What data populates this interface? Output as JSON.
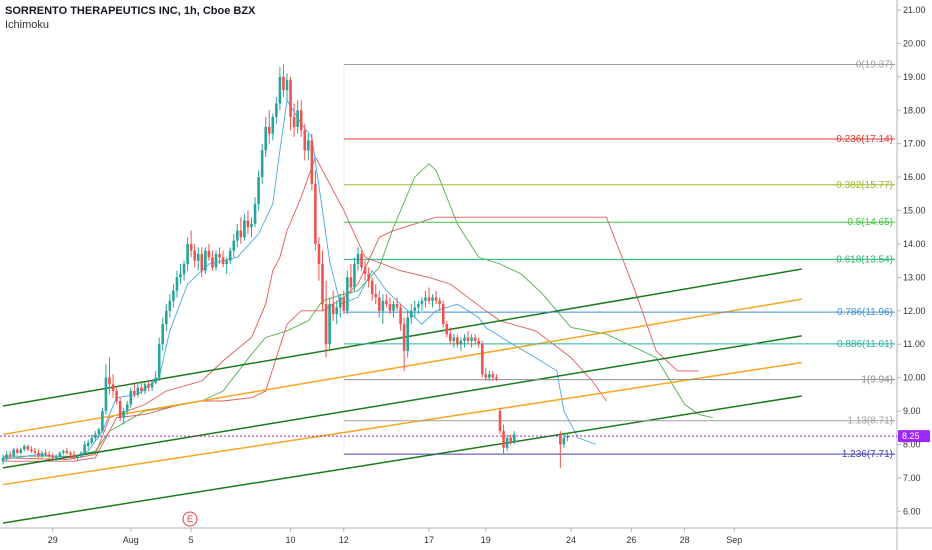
{
  "header": {
    "title": "SORRENTO THERAPEUTICS INC, 1h, Cboe BZX",
    "indicator": "Ichimoku"
  },
  "earnings_marker": "E",
  "colors": {
    "up": "#26a69a",
    "down": "#ef5350",
    "tenkan": "#4aa8e6",
    "kijun": "#e05a5a",
    "span_a": "#4caf50",
    "span_b": "#e05a5a",
    "channel_green": "#1b7a1b",
    "channel_orange": "#f5a623",
    "price_line": "#9c27b0",
    "price_badge": "#9c27ff"
  },
  "chart_data": {
    "type": "candlestick",
    "symbol": "SORRENTO THERAPEUTICS INC",
    "interval": "1h",
    "exchange": "Cboe BZX",
    "current_price": "8.25",
    "y_range": [
      5.5,
      21.3
    ],
    "y_ticks": [
      "6.00",
      "7.00",
      "8.00",
      "9.00",
      "10.00",
      "11.00",
      "12.00",
      "13.00",
      "14.00",
      "15.00",
      "16.00",
      "17.00",
      "18.00",
      "19.00",
      "20.00",
      "21.00"
    ],
    "x_ticks": [
      {
        "label": "29",
        "bar": 14
      },
      {
        "label": "Aug",
        "bar": 36
      },
      {
        "label": "5",
        "bar": 53
      },
      {
        "label": "10",
        "bar": 81
      },
      {
        "label": "12",
        "bar": 96
      },
      {
        "label": "17",
        "bar": 120
      },
      {
        "label": "19",
        "bar": 136
      },
      {
        "label": "24",
        "bar": 160
      },
      {
        "label": "26",
        "bar": 177
      },
      {
        "label": "28",
        "bar": 192
      },
      {
        "label": "Sep",
        "bar": 206
      }
    ],
    "fib_levels": [
      {
        "ratio": "0",
        "label": "0(19.37)",
        "price": 19.37,
        "color": "#9e9e9e"
      },
      {
        "ratio": "0.236",
        "label": "0.236(17.14)",
        "price": 17.14,
        "color": "#e53935"
      },
      {
        "ratio": "0.382",
        "label": "0.382(15.77)",
        "price": 15.77,
        "color": "#a4b82d"
      },
      {
        "ratio": "0.5",
        "label": "0.5(14.65)",
        "price": 14.65,
        "color": "#43c443"
      },
      {
        "ratio": "0.618",
        "label": "0.618(13.54)",
        "price": 13.54,
        "color": "#26b56c"
      },
      {
        "ratio": "0.786",
        "label": "0.786(11.96)",
        "price": 11.96,
        "color": "#3d8fd6"
      },
      {
        "ratio": "0.886",
        "label": "0.886(11.01)",
        "price": 11.01,
        "color": "#26b3a0"
      },
      {
        "ratio": "1",
        "label": "1(9.94)",
        "price": 9.94,
        "color": "#8d8d8d"
      },
      {
        "ratio": "1.13",
        "label": "1.13(8.71)",
        "price": 8.71,
        "color": "#9e9e9e"
      },
      {
        "ratio": "1.236",
        "label": "1.236(7.71)",
        "price": 7.71,
        "color": "#3f3fb5"
      }
    ],
    "channel_lines": [
      {
        "color": "green",
        "x1_bar": 0,
        "y1": 9.15,
        "x2_bar": 225,
        "y2": 13.25
      },
      {
        "color": "orange",
        "x1_bar": 0,
        "y1": 8.3,
        "x2_bar": 225,
        "y2": 12.35
      },
      {
        "color": "green",
        "x1_bar": 0,
        "y1": 7.3,
        "x2_bar": 225,
        "y2": 11.25
      },
      {
        "color": "orange",
        "x1_bar": 0,
        "y1": 6.8,
        "x2_bar": 225,
        "y2": 10.45
      },
      {
        "color": "green",
        "x1_bar": 0,
        "y1": 5.65,
        "x2_bar": 225,
        "y2": 9.45
      }
    ],
    "candles": [
      [
        7.5,
        7.7,
        7.4,
        7.6
      ],
      [
        7.6,
        7.8,
        7.5,
        7.7
      ],
      [
        7.7,
        7.8,
        7.6,
        7.65
      ],
      [
        7.65,
        7.9,
        7.6,
        7.85
      ],
      [
        7.85,
        7.9,
        7.7,
        7.75
      ],
      [
        7.75,
        7.9,
        7.7,
        7.85
      ],
      [
        7.85,
        8.0,
        7.8,
        7.95
      ],
      [
        7.95,
        8.0,
        7.8,
        7.85
      ],
      [
        7.85,
        7.95,
        7.75,
        7.8
      ],
      [
        7.8,
        7.9,
        7.7,
        7.75
      ],
      [
        7.75,
        7.85,
        7.6,
        7.65
      ],
      [
        7.65,
        7.8,
        7.6,
        7.75
      ],
      [
        7.75,
        7.85,
        7.65,
        7.7
      ],
      [
        7.7,
        7.8,
        7.6,
        7.65
      ],
      [
        7.65,
        7.75,
        7.55,
        7.6
      ],
      [
        7.6,
        7.7,
        7.5,
        7.65
      ],
      [
        7.65,
        7.8,
        7.6,
        7.75
      ],
      [
        7.75,
        7.85,
        7.7,
        7.8
      ],
      [
        7.8,
        7.9,
        7.7,
        7.75
      ],
      [
        7.75,
        7.8,
        7.6,
        7.7
      ],
      [
        7.7,
        7.8,
        7.55,
        7.6
      ],
      [
        7.6,
        7.7,
        7.5,
        7.65
      ],
      [
        7.65,
        7.8,
        7.6,
        7.75
      ],
      [
        7.75,
        8.1,
        7.7,
        8.0
      ],
      [
        7.95,
        8.15,
        7.85,
        8.05
      ],
      [
        8.05,
        8.3,
        8.0,
        8.2
      ],
      [
        8.2,
        8.4,
        8.1,
        8.3
      ],
      [
        8.3,
        8.5,
        8.2,
        8.45
      ],
      [
        8.4,
        9.1,
        8.35,
        9.0
      ],
      [
        9.0,
        10.4,
        8.9,
        10.0
      ],
      [
        10.0,
        10.6,
        9.5,
        9.8
      ],
      [
        9.8,
        10.1,
        9.4,
        9.6
      ],
      [
        9.6,
        9.7,
        9.2,
        9.3
      ],
      [
        9.3,
        9.4,
        8.7,
        8.8
      ],
      [
        8.8,
        9.1,
        8.6,
        9.0
      ],
      [
        9.0,
        9.3,
        8.9,
        9.2
      ],
      [
        9.2,
        9.7,
        9.1,
        9.6
      ],
      [
        9.6,
        9.8,
        9.4,
        9.5
      ],
      [
        9.5,
        9.8,
        9.4,
        9.7
      ],
      [
        9.7,
        9.9,
        9.5,
        9.6
      ],
      [
        9.6,
        9.85,
        9.5,
        9.8
      ],
      [
        9.8,
        9.9,
        9.6,
        9.7
      ],
      [
        9.7,
        9.9,
        9.6,
        9.85
      ],
      [
        9.85,
        10.2,
        9.8,
        10.0
      ],
      [
        10.0,
        11.2,
        9.9,
        11.0
      ],
      [
        11.0,
        11.8,
        10.8,
        11.6
      ],
      [
        11.6,
        12.2,
        11.4,
        12.0
      ],
      [
        12.0,
        12.5,
        11.8,
        12.3
      ],
      [
        12.3,
        12.8,
        12.1,
        12.6
      ],
      [
        12.6,
        13.2,
        12.4,
        13.0
      ],
      [
        13.0,
        13.4,
        12.8,
        13.1
      ],
      [
        13.1,
        13.5,
        12.9,
        13.4
      ],
      [
        13.4,
        14.2,
        13.2,
        14.0
      ],
      [
        14.0,
        14.4,
        13.6,
        13.8
      ],
      [
        13.8,
        14.0,
        13.3,
        13.5
      ],
      [
        13.5,
        13.9,
        13.2,
        13.7
      ],
      [
        13.7,
        13.9,
        13.0,
        13.2
      ],
      [
        13.2,
        13.9,
        13.1,
        13.8
      ],
      [
        13.8,
        14.0,
        13.5,
        13.6
      ],
      [
        13.6,
        13.8,
        13.2,
        13.3
      ],
      [
        13.3,
        13.8,
        13.2,
        13.7
      ],
      [
        13.7,
        13.9,
        13.4,
        13.6
      ],
      [
        13.6,
        13.8,
        13.3,
        13.4
      ],
      [
        13.4,
        13.6,
        13.1,
        13.5
      ],
      [
        13.5,
        13.9,
        13.4,
        13.8
      ],
      [
        13.8,
        14.3,
        13.6,
        14.1
      ],
      [
        14.1,
        14.6,
        13.9,
        14.4
      ],
      [
        14.4,
        14.8,
        14.0,
        14.2
      ],
      [
        14.2,
        14.9,
        14.1,
        14.7
      ],
      [
        14.7,
        15.0,
        14.3,
        14.5
      ],
      [
        14.5,
        14.8,
        14.2,
        14.6
      ],
      [
        14.6,
        15.4,
        14.5,
        15.2
      ],
      [
        15.2,
        16.2,
        15.0,
        16.0
      ],
      [
        16.0,
        17.0,
        15.8,
        16.8
      ],
      [
        16.8,
        17.8,
        16.6,
        17.5
      ],
      [
        17.5,
        18.0,
        17.0,
        17.3
      ],
      [
        17.3,
        17.9,
        17.1,
        17.8
      ],
      [
        17.8,
        18.4,
        17.6,
        18.2
      ],
      [
        18.2,
        19.3,
        18.0,
        19.0
      ],
      [
        19.0,
        19.37,
        18.4,
        18.6
      ],
      [
        18.6,
        19.1,
        18.3,
        18.9
      ],
      [
        18.9,
        19.0,
        17.4,
        17.8
      ],
      [
        17.8,
        18.2,
        17.2,
        17.5
      ],
      [
        17.5,
        18.3,
        17.3,
        18.0
      ],
      [
        18.0,
        18.3,
        17.2,
        17.4
      ],
      [
        17.4,
        17.6,
        16.5,
        16.8
      ],
      [
        16.8,
        17.3,
        16.5,
        17.1
      ],
      [
        17.1,
        17.3,
        15.6,
        15.8
      ],
      [
        15.8,
        16.2,
        13.8,
        14.0
      ],
      [
        14.0,
        14.2,
        12.9,
        13.4
      ],
      [
        13.4,
        13.8,
        12.0,
        12.2
      ],
      [
        12.2,
        12.9,
        10.6,
        11.0
      ],
      [
        11.0,
        12.4,
        10.8,
        12.2
      ],
      [
        12.2,
        12.6,
        11.7,
        11.9
      ],
      [
        11.9,
        12.3,
        11.6,
        12.1
      ],
      [
        12.1,
        12.5,
        11.8,
        12.4
      ],
      [
        12.4,
        12.6,
        11.9,
        12.0
      ],
      [
        12.0,
        13.2,
        11.9,
        13.0
      ],
      [
        13.0,
        13.4,
        12.5,
        12.7
      ],
      [
        12.7,
        13.6,
        12.6,
        13.4
      ],
      [
        13.4,
        13.9,
        13.2,
        13.7
      ],
      [
        13.7,
        13.8,
        13.2,
        13.3
      ],
      [
        13.3,
        13.5,
        12.9,
        13.1
      ],
      [
        13.1,
        13.3,
        12.7,
        12.9
      ],
      [
        12.9,
        13.0,
        12.3,
        12.5
      ],
      [
        12.5,
        12.8,
        12.2,
        12.4
      ],
      [
        12.4,
        12.6,
        11.8,
        12.0
      ],
      [
        12.0,
        12.5,
        11.6,
        12.3
      ],
      [
        12.3,
        12.5,
        12.1,
        12.2
      ],
      [
        12.2,
        12.4,
        11.9,
        12.0
      ],
      [
        12.0,
        12.3,
        11.8,
        12.2
      ],
      [
        12.2,
        12.4,
        12.0,
        12.1
      ],
      [
        12.1,
        12.2,
        11.4,
        11.6
      ],
      [
        11.6,
        11.8,
        10.2,
        10.8
      ],
      [
        10.8,
        12.0,
        10.6,
        11.8
      ],
      [
        11.8,
        12.2,
        11.6,
        12.0
      ],
      [
        12.0,
        12.3,
        11.8,
        12.1
      ],
      [
        12.1,
        12.3,
        11.9,
        12.2
      ],
      [
        12.2,
        12.4,
        12.0,
        12.3
      ],
      [
        12.3,
        12.6,
        12.1,
        12.4
      ],
      [
        12.4,
        12.7,
        12.2,
        12.3
      ],
      [
        12.3,
        12.5,
        12.1,
        12.4
      ],
      [
        12.4,
        12.6,
        12.2,
        12.3
      ],
      [
        12.3,
        12.4,
        12.0,
        12.2
      ],
      [
        12.2,
        12.3,
        11.5,
        11.6
      ],
      [
        11.6,
        11.7,
        11.2,
        11.3
      ],
      [
        11.3,
        11.5,
        11.0,
        11.1
      ],
      [
        11.1,
        11.3,
        10.9,
        11.2
      ],
      [
        11.2,
        11.3,
        10.9,
        11.0
      ],
      [
        11.0,
        11.2,
        10.8,
        11.1
      ],
      [
        11.1,
        11.3,
        10.9,
        11.2
      ],
      [
        11.2,
        11.4,
        11.0,
        11.1
      ],
      [
        11.1,
        11.3,
        10.9,
        11.2
      ],
      [
        11.2,
        11.3,
        11.0,
        11.1
      ],
      [
        11.1,
        11.2,
        10.9,
        11.0
      ],
      [
        11.0,
        11.1,
        10.0,
        10.1
      ],
      [
        10.1,
        10.3,
        9.9,
        10.0
      ],
      [
        10.0,
        10.2,
        9.9,
        10.1
      ],
      [
        10.1,
        10.2,
        9.9,
        10.0
      ],
      [
        10.0,
        10.1,
        9.9,
        9.95
      ],
      [
        9.0,
        9.1,
        8.3,
        8.4
      ],
      [
        8.4,
        8.6,
        7.7,
        7.9
      ],
      [
        7.9,
        8.3,
        7.8,
        8.2
      ],
      [
        8.2,
        8.3,
        8.0,
        8.1
      ],
      [
        8.1,
        8.4,
        8.0,
        8.3
      ],
      [
        8.3,
        8.4,
        7.3,
        8.0
      ],
      [
        8.0,
        8.3,
        7.9,
        8.2
      ],
      [
        8.2,
        8.35,
        8.1,
        8.25
      ]
    ],
    "gap_after_bar": 144,
    "resume_bar": 157,
    "tenkan_sen": [
      [
        0,
        7.55
      ],
      [
        10,
        7.7
      ],
      [
        20,
        7.6
      ],
      [
        24,
        7.8
      ],
      [
        28,
        8.4
      ],
      [
        32,
        9.4
      ],
      [
        38,
        9.5
      ],
      [
        44,
        10.0
      ],
      [
        47,
        11.4
      ],
      [
        52,
        12.8
      ],
      [
        58,
        13.4
      ],
      [
        66,
        13.6
      ],
      [
        72,
        14.3
      ],
      [
        76,
        15.2
      ],
      [
        78,
        16.8
      ],
      [
        80,
        18.3
      ],
      [
        84,
        17.6
      ],
      [
        87,
        17.2
      ],
      [
        90,
        15.0
      ],
      [
        92,
        13.5
      ],
      [
        95,
        12.2
      ],
      [
        100,
        12.4
      ],
      [
        104,
        13.2
      ],
      [
        108,
        12.6
      ],
      [
        112,
        12.2
      ],
      [
        118,
        11.6
      ],
      [
        122,
        12.0
      ],
      [
        128,
        12.2
      ],
      [
        134,
        11.8
      ],
      [
        136,
        11.5
      ],
      [
        142,
        11.1
      ],
      [
        150,
        10.6
      ],
      [
        156,
        10.2
      ],
      [
        158,
        9.0
      ],
      [
        162,
        8.2
      ],
      [
        167,
        8.0
      ]
    ],
    "kijun_sen": [
      [
        0,
        7.6
      ],
      [
        18,
        7.55
      ],
      [
        26,
        7.7
      ],
      [
        30,
        8.8
      ],
      [
        40,
        9.2
      ],
      [
        46,
        9.6
      ],
      [
        56,
        9.9
      ],
      [
        62,
        10.5
      ],
      [
        70,
        11.2
      ],
      [
        74,
        12.2
      ],
      [
        76,
        13.2
      ],
      [
        78,
        13.6
      ],
      [
        80,
        14.4
      ],
      [
        84,
        15.4
      ],
      [
        88,
        16.6
      ],
      [
        96,
        15.0
      ],
      [
        102,
        13.6
      ],
      [
        112,
        13.2
      ],
      [
        120,
        13.0
      ],
      [
        126,
        12.8
      ],
      [
        136,
        12.0
      ],
      [
        140,
        11.7
      ],
      [
        150,
        11.4
      ],
      [
        160,
        10.6
      ],
      [
        166,
        9.9
      ],
      [
        170,
        9.3
      ]
    ],
    "senkou_span_a": [
      [
        0,
        7.65
      ],
      [
        20,
        7.65
      ],
      [
        26,
        7.8
      ],
      [
        30,
        8.4
      ],
      [
        40,
        9.0
      ],
      [
        46,
        9.1
      ],
      [
        56,
        9.3
      ],
      [
        62,
        9.6
      ],
      [
        70,
        10.7
      ],
      [
        74,
        11.2
      ],
      [
        80,
        11.4
      ],
      [
        86,
        11.7
      ],
      [
        90,
        12.3
      ],
      [
        96,
        12.5
      ],
      [
        100,
        12.6
      ],
      [
        106,
        13.3
      ],
      [
        110,
        14.5
      ],
      [
        116,
        16.0
      ],
      [
        120,
        16.4
      ],
      [
        122,
        16.2
      ],
      [
        128,
        14.6
      ],
      [
        134,
        13.6
      ],
      [
        140,
        13.4
      ],
      [
        146,
        13.1
      ],
      [
        152,
        12.5
      ],
      [
        160,
        11.5
      ],
      [
        170,
        11.3
      ],
      [
        178,
        10.9
      ],
      [
        184,
        10.6
      ],
      [
        192,
        9.2
      ],
      [
        196,
        8.9
      ],
      [
        200,
        8.8
      ]
    ],
    "senkou_span_b": [
      [
        0,
        7.5
      ],
      [
        20,
        7.5
      ],
      [
        26,
        7.6
      ],
      [
        32,
        8.8
      ],
      [
        40,
        8.9
      ],
      [
        50,
        9.2
      ],
      [
        56,
        9.3
      ],
      [
        62,
        9.3
      ],
      [
        70,
        9.4
      ],
      [
        74,
        9.6
      ],
      [
        80,
        11.6
      ],
      [
        84,
        12.0
      ],
      [
        90,
        12.0
      ],
      [
        96,
        12.4
      ],
      [
        100,
        12.8
      ],
      [
        106,
        14.2
      ],
      [
        110,
        14.4
      ],
      [
        116,
        14.6
      ],
      [
        122,
        14.8
      ],
      [
        128,
        14.8
      ],
      [
        140,
        14.8
      ],
      [
        154,
        14.8
      ],
      [
        164,
        14.8
      ],
      [
        170,
        14.8
      ],
      [
        178,
        12.6
      ],
      [
        184,
        10.8
      ],
      [
        190,
        10.2
      ],
      [
        196,
        10.2
      ]
    ]
  }
}
